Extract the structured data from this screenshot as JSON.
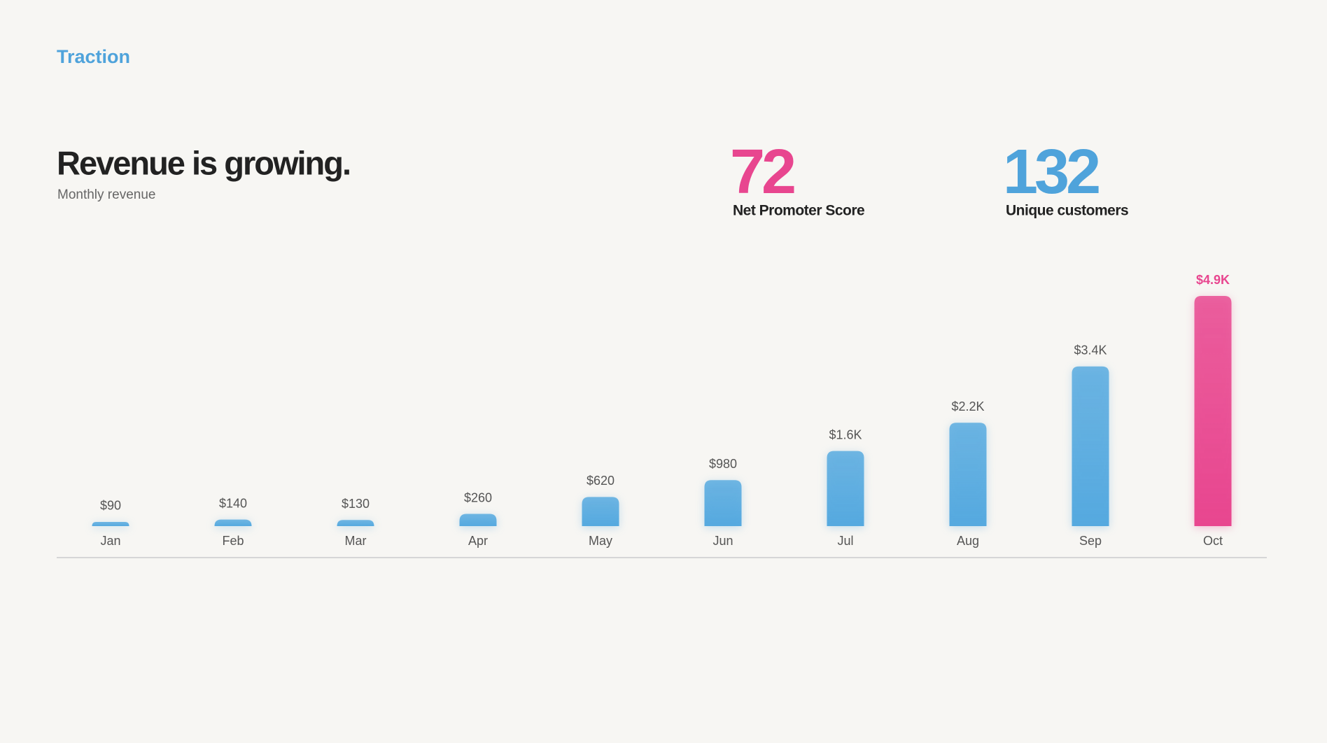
{
  "header": {
    "section": "Traction"
  },
  "stats": [
    {
      "value": 72,
      "label": "Net Promoter Score",
      "color": "#e8468f"
    },
    {
      "value": 132,
      "label": "Unique customers",
      "color": "#4fa3db"
    }
  ],
  "chart_data": {
    "type": "bar",
    "title": "Revenue is growing.",
    "subtitle": "Monthly revenue",
    "categories": [
      "Jan",
      "Feb",
      "Mar",
      "Apr",
      "May",
      "Jun",
      "Jul",
      "Aug",
      "Sep",
      "Oct"
    ],
    "values": [
      90,
      140,
      130,
      260,
      620,
      980,
      1600,
      2200,
      3400,
      4900
    ],
    "value_labels": [
      "$90",
      "$140",
      "$130",
      "$260",
      "$620",
      "$980",
      "$1.6K",
      "$2.2K",
      "$3.4K",
      "$4.9K"
    ],
    "color": "#55a9df",
    "colors": [
      "#55a9df",
      "#55a9df",
      "#55a9df",
      "#55a9df",
      "#55a9df",
      "#55a9df",
      "#55a9df",
      "#55a9df",
      "#55a9df",
      "#e8468f"
    ]
  }
}
